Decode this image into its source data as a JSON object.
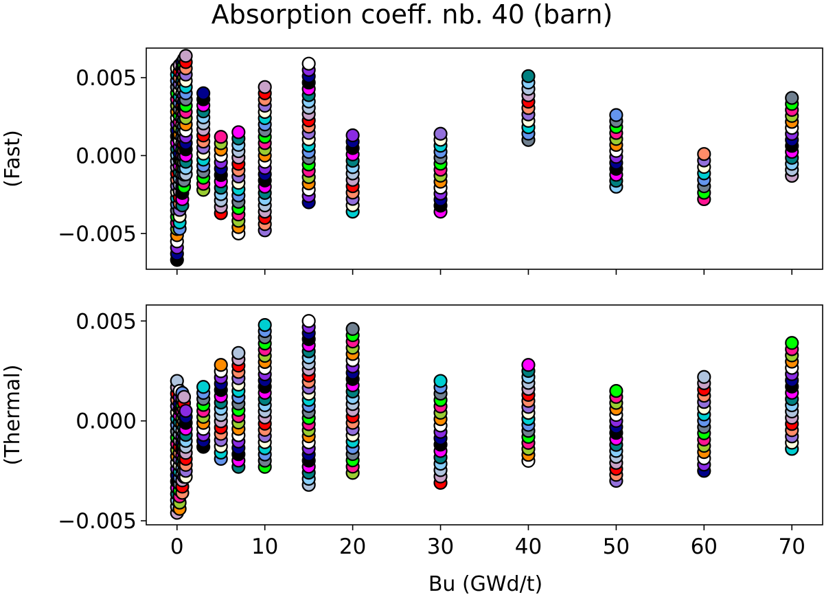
{
  "chart_data": {
    "type": "scatter",
    "title": "Absorption coeff. nb. 40 (barn)",
    "xlabel": "Bu (GWd/t)",
    "xlim": [
      -3.5,
      73.5
    ],
    "xticks": [
      0,
      10,
      20,
      30,
      40,
      50,
      60,
      70
    ],
    "xtick_labels": [
      "0",
      "10",
      "20",
      "30",
      "40",
      "50",
      "60",
      "70"
    ],
    "colors": [
      "#000000",
      "#ffffff",
      "#ff1493",
      "#6495ed",
      "#9370db",
      "#c8a2c8",
      "#008080",
      "#00008b",
      "#ff8c00",
      "#00ff00",
      "#00ced1",
      "#ff8c69",
      "#b0c4de",
      "#ff00ff",
      "#8a2be2",
      "#9acd32",
      "#708090",
      "#ffffe0",
      "#ff0000",
      "#87cefa"
    ],
    "panels": [
      {
        "ylabel": "(Fast)",
        "ylim": [
          -0.0073,
          0.0069
        ],
        "yticks": [
          -0.005,
          0.0,
          0.005
        ],
        "ytick_labels": [
          "−0.005",
          "0.000",
          "0.005"
        ],
        "columns": [
          {
            "x": 0,
            "min": -0.0067,
            "max": 0.0056
          },
          {
            "x": 0.3,
            "min": -0.0047,
            "max": 0.0058
          },
          {
            "x": 0.6,
            "min": -0.0032,
            "max": 0.006
          },
          {
            "x": 0.8,
            "min": -0.002,
            "max": 0.0062
          },
          {
            "x": 1.0,
            "min": -0.0012,
            "max": 0.0064
          },
          {
            "x": 3,
            "min": -0.0022,
            "max": 0.004
          },
          {
            "x": 5,
            "min": -0.0037,
            "max": 0.0012
          },
          {
            "x": 7,
            "min": -0.005,
            "max": 0.0015
          },
          {
            "x": 10,
            "min": -0.0048,
            "max": 0.0044
          },
          {
            "x": 15,
            "min": -0.003,
            "max": 0.0059
          },
          {
            "x": 20,
            "min": -0.0036,
            "max": 0.0013
          },
          {
            "x": 30,
            "min": -0.0036,
            "max": 0.0014
          },
          {
            "x": 40,
            "min": 0.001,
            "max": 0.0051
          },
          {
            "x": 50,
            "min": -0.002,
            "max": 0.0026
          },
          {
            "x": 60,
            "min": -0.0028,
            "max": 0.0001
          },
          {
            "x": 70,
            "min": -0.0013,
            "max": 0.0037
          }
        ]
      },
      {
        "ylabel": "(Thermal)",
        "ylim": [
          -0.0052,
          0.0058
        ],
        "yticks": [
          -0.005,
          0.0,
          0.005
        ],
        "ytick_labels": [
          "−0.005",
          "0.000",
          "0.005"
        ],
        "columns": [
          {
            "x": 0,
            "min": -0.0046,
            "max": 0.002
          },
          {
            "x": 0.3,
            "min": -0.0044,
            "max": 0.0015
          },
          {
            "x": 0.6,
            "min": -0.0036,
            "max": 0.0014
          },
          {
            "x": 0.8,
            "min": -0.0028,
            "max": 0.0012
          },
          {
            "x": 1.0,
            "min": -0.0028,
            "max": 0.0005
          },
          {
            "x": 3,
            "min": -0.0013,
            "max": 0.0017
          },
          {
            "x": 5,
            "min": -0.0019,
            "max": 0.0028
          },
          {
            "x": 7,
            "min": -0.0023,
            "max": 0.0034
          },
          {
            "x": 10,
            "min": -0.0023,
            "max": 0.0048
          },
          {
            "x": 15,
            "min": -0.0032,
            "max": 0.005
          },
          {
            "x": 20,
            "min": -0.0026,
            "max": 0.0046
          },
          {
            "x": 30,
            "min": -0.0031,
            "max": 0.002
          },
          {
            "x": 40,
            "min": -0.002,
            "max": 0.0028
          },
          {
            "x": 50,
            "min": -0.003,
            "max": 0.0015
          },
          {
            "x": 60,
            "min": -0.0025,
            "max": 0.0022
          },
          {
            "x": 70,
            "min": -0.0014,
            "max": 0.0039
          }
        ]
      }
    ]
  }
}
